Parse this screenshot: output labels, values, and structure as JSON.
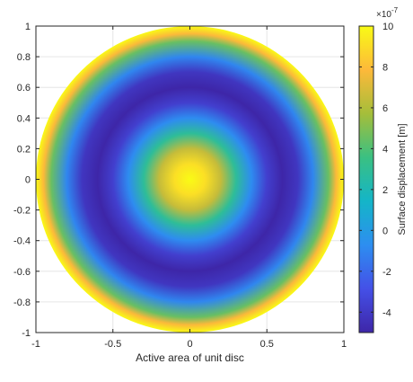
{
  "chart_data": {
    "type": "heatmap",
    "title": "",
    "xlabel": "Active area of unit disc",
    "ylabel": "",
    "xlim": [
      -1,
      1
    ],
    "ylim": [
      -1,
      1
    ],
    "xticks": [
      "-1",
      "-0.5",
      "0",
      "0.5",
      "1"
    ],
    "yticks": [
      "1",
      "0.8",
      "0.6",
      "0.4",
      "0.2",
      "0",
      "-0.2",
      "-0.4",
      "-0.6",
      "-0.8",
      "-1"
    ],
    "grid": true,
    "colormap": "parula",
    "colorbar": {
      "label": "Surface displacement [m]",
      "exponent_label": "×10",
      "exponent_value": "-7",
      "range": [
        -5,
        10
      ],
      "ticks": [
        "10",
        "8",
        "6",
        "4",
        "2",
        "0",
        "-2",
        "-4"
      ]
    },
    "radial_profile": {
      "r": [
        0.0,
        0.1,
        0.2,
        0.3,
        0.4,
        0.5,
        0.6,
        0.7,
        0.8,
        0.9,
        0.95,
        1.0
      ],
      "value": [
        10,
        9.1,
        6.5,
        2.9,
        -0.8,
        -3.7,
        -5.0,
        -4.2,
        -1.0,
        4.5,
        7.8,
        10
      ]
    }
  },
  "colors": {
    "axis": "#262626",
    "grid": "#e6e6e6",
    "colormap_stops": [
      "#3e26a8",
      "#4450e7",
      "#2d8ef0",
      "#14b5c8",
      "#3ac082",
      "#a5be3a",
      "#fdb93a",
      "#f9fb15"
    ]
  }
}
